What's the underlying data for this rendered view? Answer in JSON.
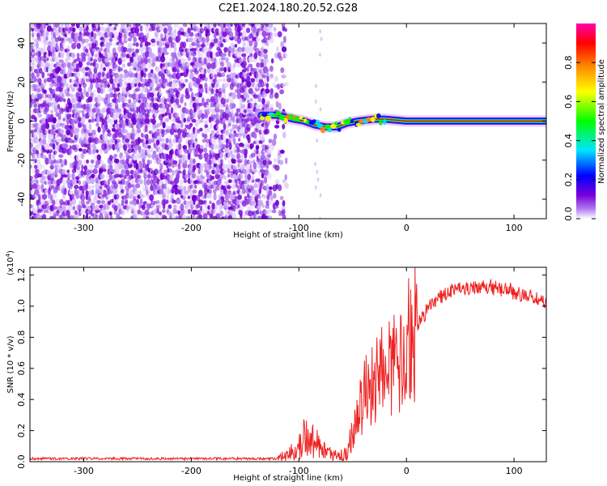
{
  "title": "C2E1.2024.180.20.52.G28",
  "chart_data": [
    {
      "type": "heatmap",
      "xlabel": "Height of straight line (km)",
      "ylabel": "Frequency (Hz)",
      "xlim": [
        -350,
        130
      ],
      "ylim": [
        -50,
        50
      ],
      "xticks": [
        -300,
        -200,
        -100,
        0,
        100
      ],
      "yticks": [
        -40,
        -20,
        0,
        20,
        40
      ],
      "colorbar": {
        "label": "Normalized spectral amplitude",
        "range": [
          0,
          1
        ],
        "ticks": [
          "0.0",
          "0.2",
          "0.4",
          "0.6",
          "0.8"
        ],
        "colors": [
          "#ffffff",
          "#7a00d9",
          "#0000ff",
          "#00e5ff",
          "#00ff00",
          "#ffff00",
          "#ff8800",
          "#ff0000",
          "#ff00aa"
        ]
      },
      "ridge": [
        {
          "x": -135,
          "y": 3
        },
        {
          "x": -120,
          "y": 3
        },
        {
          "x": -105,
          "y": 1
        },
        {
          "x": -95,
          "y": 0
        },
        {
          "x": -85,
          "y": -2
        },
        {
          "x": -75,
          "y": -3
        },
        {
          "x": -65,
          "y": -3
        },
        {
          "x": -55,
          "y": -1
        },
        {
          "x": -45,
          "y": 0
        },
        {
          "x": -30,
          "y": 1
        },
        {
          "x": -20,
          "y": 1
        },
        {
          "x": 0,
          "y": 0
        },
        {
          "x": 130,
          "y": 0
        }
      ],
      "noise_region": [
        -350,
        -120
      ]
    },
    {
      "type": "line",
      "xlabel": "Height of straight line (km)",
      "ylabel": "SNR (10 * v/v)",
      "yscale_label": "(x10",
      "yscale_exp": "4",
      "yscale_close": ")",
      "xlim": [
        -350,
        130
      ],
      "ylim": [
        0,
        1.25
      ],
      "xticks": [
        -300,
        -200,
        -100,
        0,
        100
      ],
      "yticks": [
        "0.0",
        "0.2",
        "0.4",
        "0.6",
        "0.8",
        "1.0",
        "1.2"
      ],
      "color": "#ee2222",
      "x": [
        -350,
        -300,
        -250,
        -200,
        -150,
        -120,
        -105,
        -95,
        -85,
        -75,
        -65,
        -55,
        -45,
        -38,
        -30,
        -20,
        -10,
        0,
        10,
        20,
        30,
        40,
        50,
        60,
        70,
        80,
        90,
        100,
        110,
        120,
        130
      ],
      "y": [
        0.02,
        0.02,
        0.02,
        0.02,
        0.02,
        0.02,
        0.07,
        0.15,
        0.12,
        0.06,
        0.04,
        0.05,
        0.3,
        0.45,
        0.52,
        0.58,
        0.65,
        0.75,
        0.88,
        0.98,
        1.05,
        1.1,
        1.12,
        1.12,
        1.13,
        1.12,
        1.11,
        1.09,
        1.07,
        1.05,
        1.02
      ]
    }
  ]
}
